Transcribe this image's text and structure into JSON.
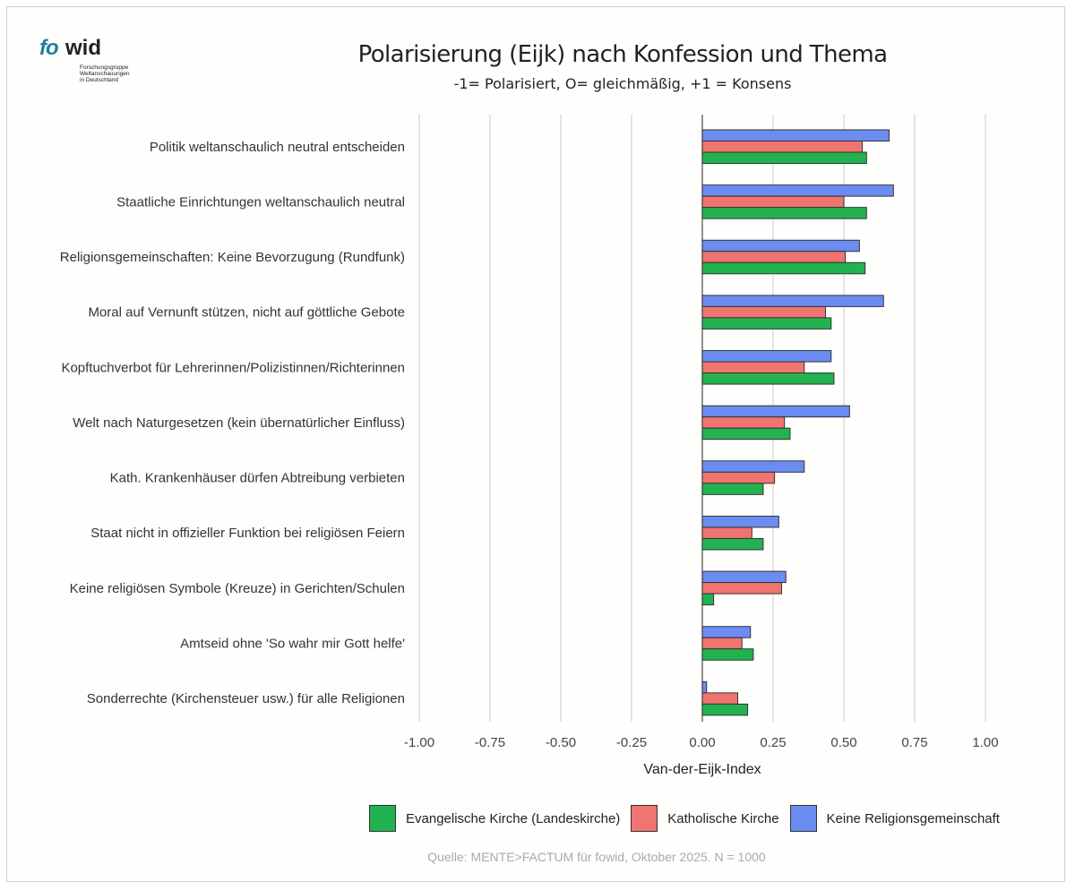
{
  "logo": {
    "brand_fo": "fo",
    "brand_wid": "wid",
    "sub_lines": [
      "Forschungsgruppe",
      "Weltanschauungen",
      "in Deutschland"
    ]
  },
  "source_note": "Quelle: MENTE>FACTUM für fowid, Oktober 2025. N = 1000",
  "chart_data": {
    "type": "bar",
    "orientation": "horizontal",
    "title": "Polarisierung (Eijk) nach Konfession und Thema",
    "subtitle": "-1= Polarisiert, O= gleichmäßig, +1 = Konsens",
    "xlabel": "Van-der-Eijk-Index",
    "ylabel": "",
    "xlim": [
      -1.0,
      1.0
    ],
    "xticks": [
      -1.0,
      -0.75,
      -0.5,
      -0.25,
      0.0,
      0.25,
      0.5,
      0.75,
      1.0
    ],
    "xtick_labels": [
      "-1.00",
      "-0.75",
      "-0.50",
      "-0.25",
      "0.00",
      "0.25",
      "0.50",
      "0.75",
      "1.00"
    ],
    "grid": "vertical",
    "legend_position": "bottom",
    "categories": [
      "Politik weltanschaulich neutral entscheiden",
      "Staatliche Einrichtungen weltanschaulich neutral",
      "Religionsgemeinschaften: Keine Bevorzugung (Rundfunk)",
      "Moral auf Vernunft stützen, nicht auf göttliche Gebote",
      "Kopftuchverbot für Lehrerinnen/Polizistinnen/Richterinnen",
      "Welt nach Naturgesetzen (kein übernatürlicher Einfluss)",
      "Kath. Krankenhäuser dürfen Abtreibung verbieten",
      "Staat nicht in offizieller Funktion bei religiösen Feiern",
      "Keine religiösen Symbole (Kreuze) in Gerichten/Schulen",
      "Amtseid ohne 'So wahr mir Gott helfe'",
      "Sonderrechte (Kirchensteuer usw.) für alle Religionen"
    ],
    "series": [
      {
        "name": "Keine Religionsgemeinschaft",
        "color": "#6b8cf0",
        "values": [
          0.66,
          0.675,
          0.555,
          0.64,
          0.455,
          0.52,
          0.36,
          0.27,
          0.295,
          0.17,
          0.015
        ]
      },
      {
        "name": "Katholische Kirche",
        "color": "#f07470",
        "values": [
          0.565,
          0.5,
          0.505,
          0.435,
          0.36,
          0.29,
          0.255,
          0.175,
          0.28,
          0.14,
          0.125
        ]
      },
      {
        "name": "Evangelische Kirche (Landeskirche)",
        "color": "#22b24f",
        "values": [
          0.58,
          0.58,
          0.575,
          0.455,
          0.465,
          0.31,
          0.215,
          0.215,
          0.04,
          0.18,
          0.16
        ]
      }
    ],
    "legend_order": [
      "Evangelische Kirche (Landeskirche)",
      "Katholische Kirche",
      "Keine Religionsgemeinschaft"
    ]
  }
}
